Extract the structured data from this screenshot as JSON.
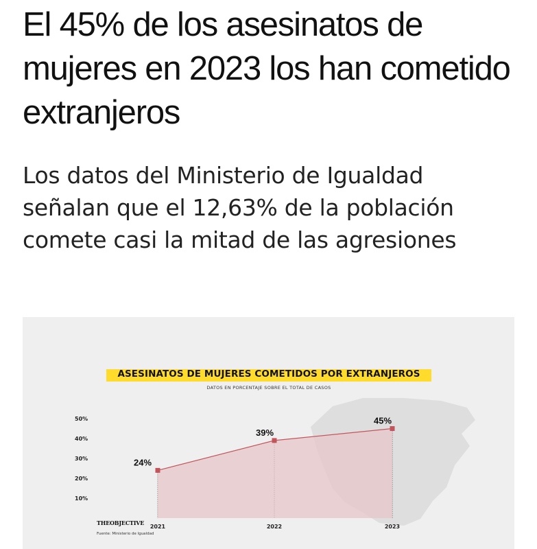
{
  "article": {
    "headline": "El 45% de los asesinatos de mujeres en 2023 los han cometido extranjeros",
    "subheadline": "Los datos del Ministerio de Igualdad señalan que el 12,63% de la población comete casi la mitad de las agresiones"
  },
  "brand": "THEOBJECTIVE",
  "source": "Fuente: Ministerio de Igualdad",
  "colors": {
    "title_highlight": "#ffdc2b",
    "line": "#c2545c",
    "area": "#e7c7ca",
    "marker": "#c2545c",
    "map": "#dedede",
    "panel": "#efefef"
  },
  "chart_data": {
    "type": "area",
    "title": "ASESINATOS DE MUJERES COMETIDOS POR EXTRANJEROS",
    "subtitle": "DATOS EN PORCENTAJE SOBRE EL TOTAL DE CASOS",
    "categories": [
      "2021",
      "2022",
      "2023"
    ],
    "values": [
      24,
      39,
      45
    ],
    "data_labels": [
      "24%",
      "39%",
      "45%"
    ],
    "y_ticks": [
      10,
      20,
      30,
      40,
      50
    ],
    "y_tick_labels": [
      "10%",
      "20%",
      "30%",
      "40%",
      "50%"
    ],
    "ylim": [
      0,
      50
    ],
    "grid": false,
    "legend": "none"
  }
}
